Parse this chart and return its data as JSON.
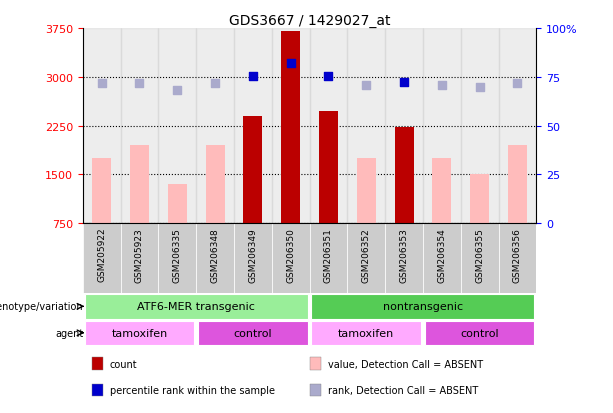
{
  "title": "GDS3667 / 1429027_at",
  "samples": [
    "GSM205922",
    "GSM205923",
    "GSM206335",
    "GSM206348",
    "GSM206349",
    "GSM206350",
    "GSM206351",
    "GSM206352",
    "GSM206353",
    "GSM206354",
    "GSM206355",
    "GSM206356"
  ],
  "count_values": [
    null,
    null,
    null,
    null,
    2400,
    3700,
    2470,
    null,
    2230,
    null,
    null,
    null
  ],
  "value_absent": [
    1750,
    1950,
    1350,
    1950,
    null,
    null,
    null,
    1750,
    null,
    1750,
    1500,
    1950
  ],
  "rank_present": [
    null,
    null,
    null,
    null,
    75.5,
    82.0,
    75.5,
    null,
    72.5,
    null,
    null,
    null
  ],
  "rank_absent": [
    72,
    72,
    68,
    72,
    null,
    null,
    null,
    71,
    null,
    71,
    70,
    72
  ],
  "ylim_left": [
    750,
    3750
  ],
  "ylim_right": [
    0,
    100
  ],
  "yticks_left": [
    750,
    1500,
    2250,
    3000,
    3750
  ],
  "yticks_right": [
    0,
    25,
    50,
    75,
    100
  ],
  "yticklabels_right": [
    "0",
    "25",
    "50",
    "75",
    "100%"
  ],
  "color_count": "#bb0000",
  "color_value_absent": "#ffbbbb",
  "color_rank_present": "#0000cc",
  "color_rank_absent": "#aaaacc",
  "color_atf6": "#99ee99",
  "color_nontransgenic": "#55cc55",
  "color_tamoxifen": "#ffaaff",
  "color_control": "#dd55dd",
  "color_col_bg": "#cccccc",
  "genotype_groups": [
    {
      "label": "ATF6-MER transgenic",
      "start": 0,
      "end": 5,
      "color": "#99ee99"
    },
    {
      "label": "nontransgenic",
      "start": 6,
      "end": 11,
      "color": "#55cc55"
    }
  ],
  "agent_groups": [
    {
      "label": "tamoxifen",
      "start": 0,
      "end": 2,
      "color": "#ffaaff"
    },
    {
      "label": "control",
      "start": 3,
      "end": 5,
      "color": "#dd55dd"
    },
    {
      "label": "tamoxifen",
      "start": 6,
      "end": 8,
      "color": "#ffaaff"
    },
    {
      "label": "control",
      "start": 9,
      "end": 11,
      "color": "#dd55dd"
    }
  ],
  "legend_items": [
    {
      "label": "count",
      "color": "#bb0000"
    },
    {
      "label": "percentile rank within the sample",
      "color": "#0000cc"
    },
    {
      "label": "value, Detection Call = ABSENT",
      "color": "#ffbbbb"
    },
    {
      "label": "rank, Detection Call = ABSENT",
      "color": "#aaaacc"
    }
  ],
  "bar_width": 0.5,
  "dot_size": 40
}
